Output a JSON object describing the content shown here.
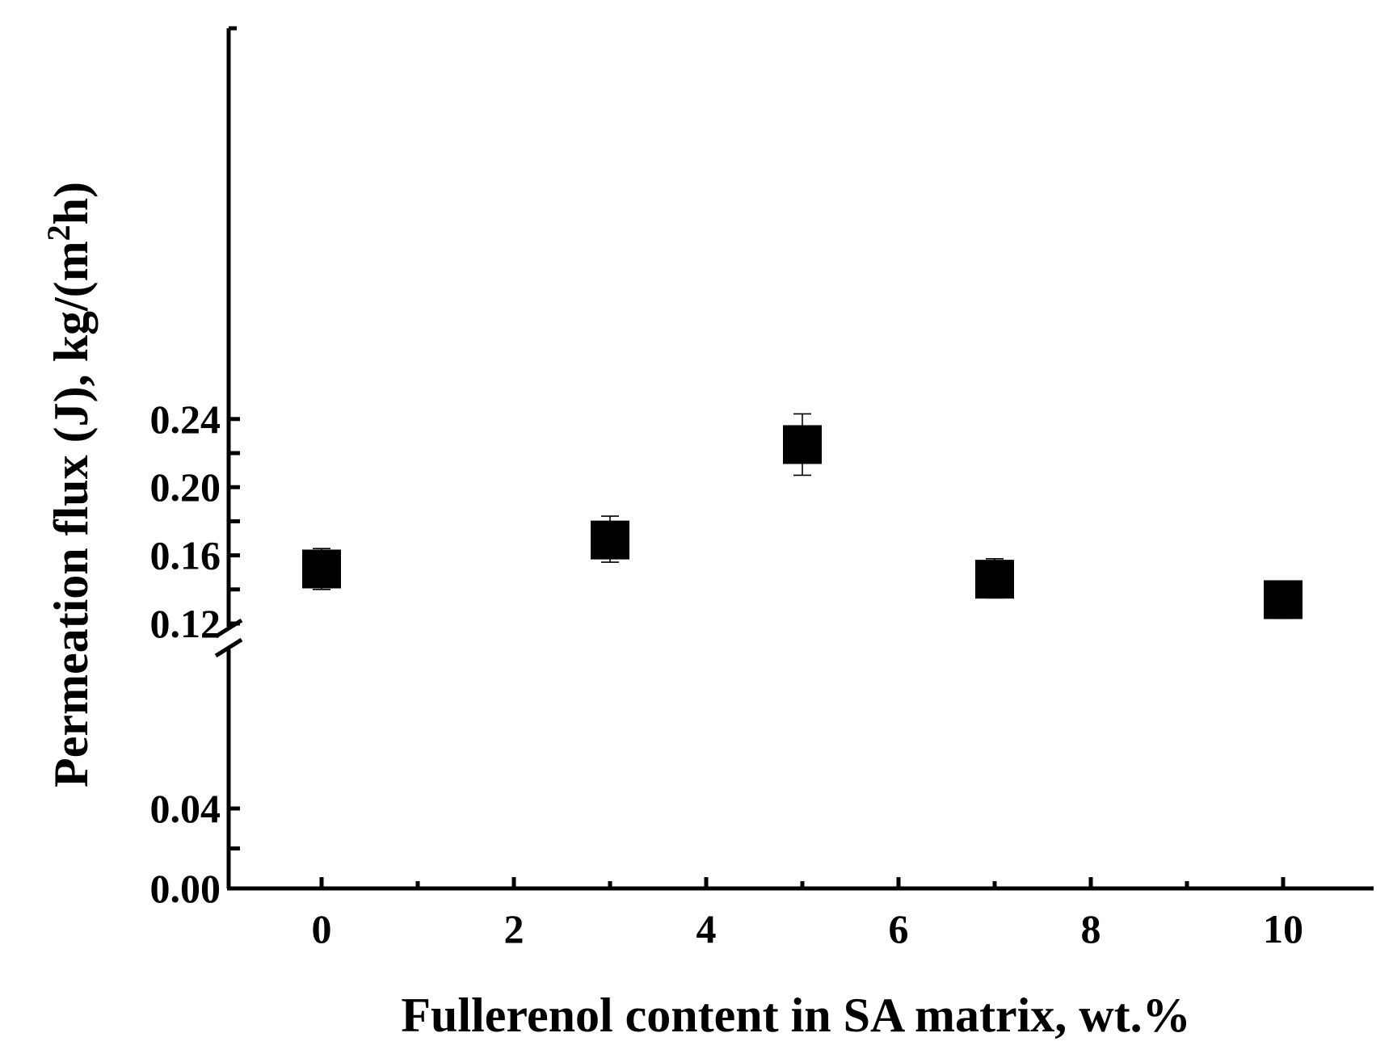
{
  "chart_data": {
    "type": "scatter",
    "xlabel": "Fullerenol content in SA matrix, wt.%",
    "ylabel_main": "Permeation flux (J), kg/(m",
    "ylabel_sup": "2",
    "ylabel_end": "h)",
    "xlim": [
      -1,
      11
    ],
    "x_ticks": [
      0,
      2,
      4,
      6,
      8,
      10
    ],
    "x_tick_labels": [
      "0",
      "2",
      "4",
      "6",
      "8",
      "10"
    ],
    "x_minor_ticks": [
      1,
      3,
      5,
      7,
      9
    ],
    "y_axis_break": true,
    "y_lower_range": [
      0.0,
      0.05
    ],
    "y_upper_range": [
      0.12,
      0.26
    ],
    "y_ticks_lower": [
      0.0,
      0.04
    ],
    "y_tick_labels_lower": [
      "0.00",
      "0.04"
    ],
    "y_minor_ticks_lower": [
      0.02
    ],
    "y_ticks_upper": [
      0.12,
      0.16,
      0.2,
      0.24
    ],
    "y_tick_labels_upper": [
      "0.12",
      "0.16",
      "0.20",
      "0.24"
    ],
    "y_minor_ticks_upper": [
      0.14,
      0.18,
      0.22
    ],
    "marker": "filled-square",
    "marker_color": "#000000",
    "points": [
      {
        "x": 0,
        "y": 0.152,
        "err_low": 0.14,
        "err_high": 0.164
      },
      {
        "x": 3,
        "y": 0.169,
        "err_low": 0.156,
        "err_high": 0.183
      },
      {
        "x": 5,
        "y": 0.225,
        "err_low": 0.207,
        "err_high": 0.243
      },
      {
        "x": 7,
        "y": 0.146,
        "err_low": 0.135,
        "err_high": 0.158
      },
      {
        "x": 10,
        "y": 0.134,
        "err_low": 0.123,
        "err_high": 0.145
      }
    ]
  }
}
